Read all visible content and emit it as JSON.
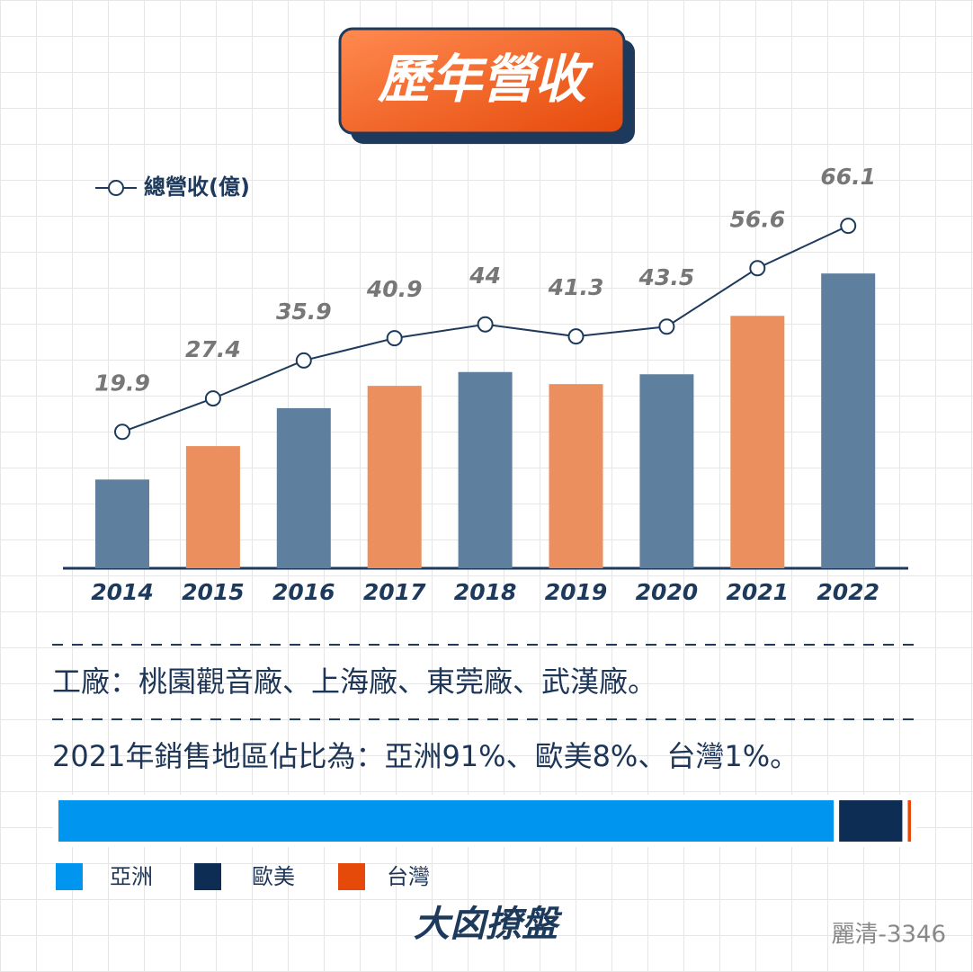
{
  "chart_data": [
    {
      "type": "bar_line",
      "title": "歷年營收",
      "categories": [
        "2014",
        "2015",
        "2016",
        "2017",
        "2018",
        "2019",
        "2020",
        "2021",
        "2022"
      ],
      "series": [
        {
          "name": "總營收(億)",
          "color": "#1d3a5c",
          "values": [
            19.9,
            27.4,
            35.9,
            40.9,
            44,
            41.3,
            43.5,
            56.6,
            66.1
          ]
        }
      ],
      "bar_colors": [
        "#5f7f9f",
        "#ec8f5e",
        "#5f7f9f",
        "#ec8f5e",
        "#5f7f9f",
        "#ec8f5e",
        "#5f7f9f",
        "#ec8f5e",
        "#5f7f9f"
      ]
    },
    {
      "type": "stacked_share",
      "title": "2021年銷售地區佔比為：亞洲91%、歐美8%、台灣1%。",
      "series": [
        {
          "name": "亞洲",
          "color": "#0096ef",
          "values": [
            91
          ]
        },
        {
          "name": "歐美",
          "color": "#0d2d55",
          "values": [
            8
          ]
        },
        {
          "name": "台灣",
          "color": "#e64a0b",
          "values": [
            1
          ]
        }
      ]
    }
  ],
  "notes": [
    "工廠：桃園觀音廠、上海廠、東莞廠、武漢廠。"
  ],
  "logo": "大囟撩盤",
  "credit": "麗清-3346"
}
